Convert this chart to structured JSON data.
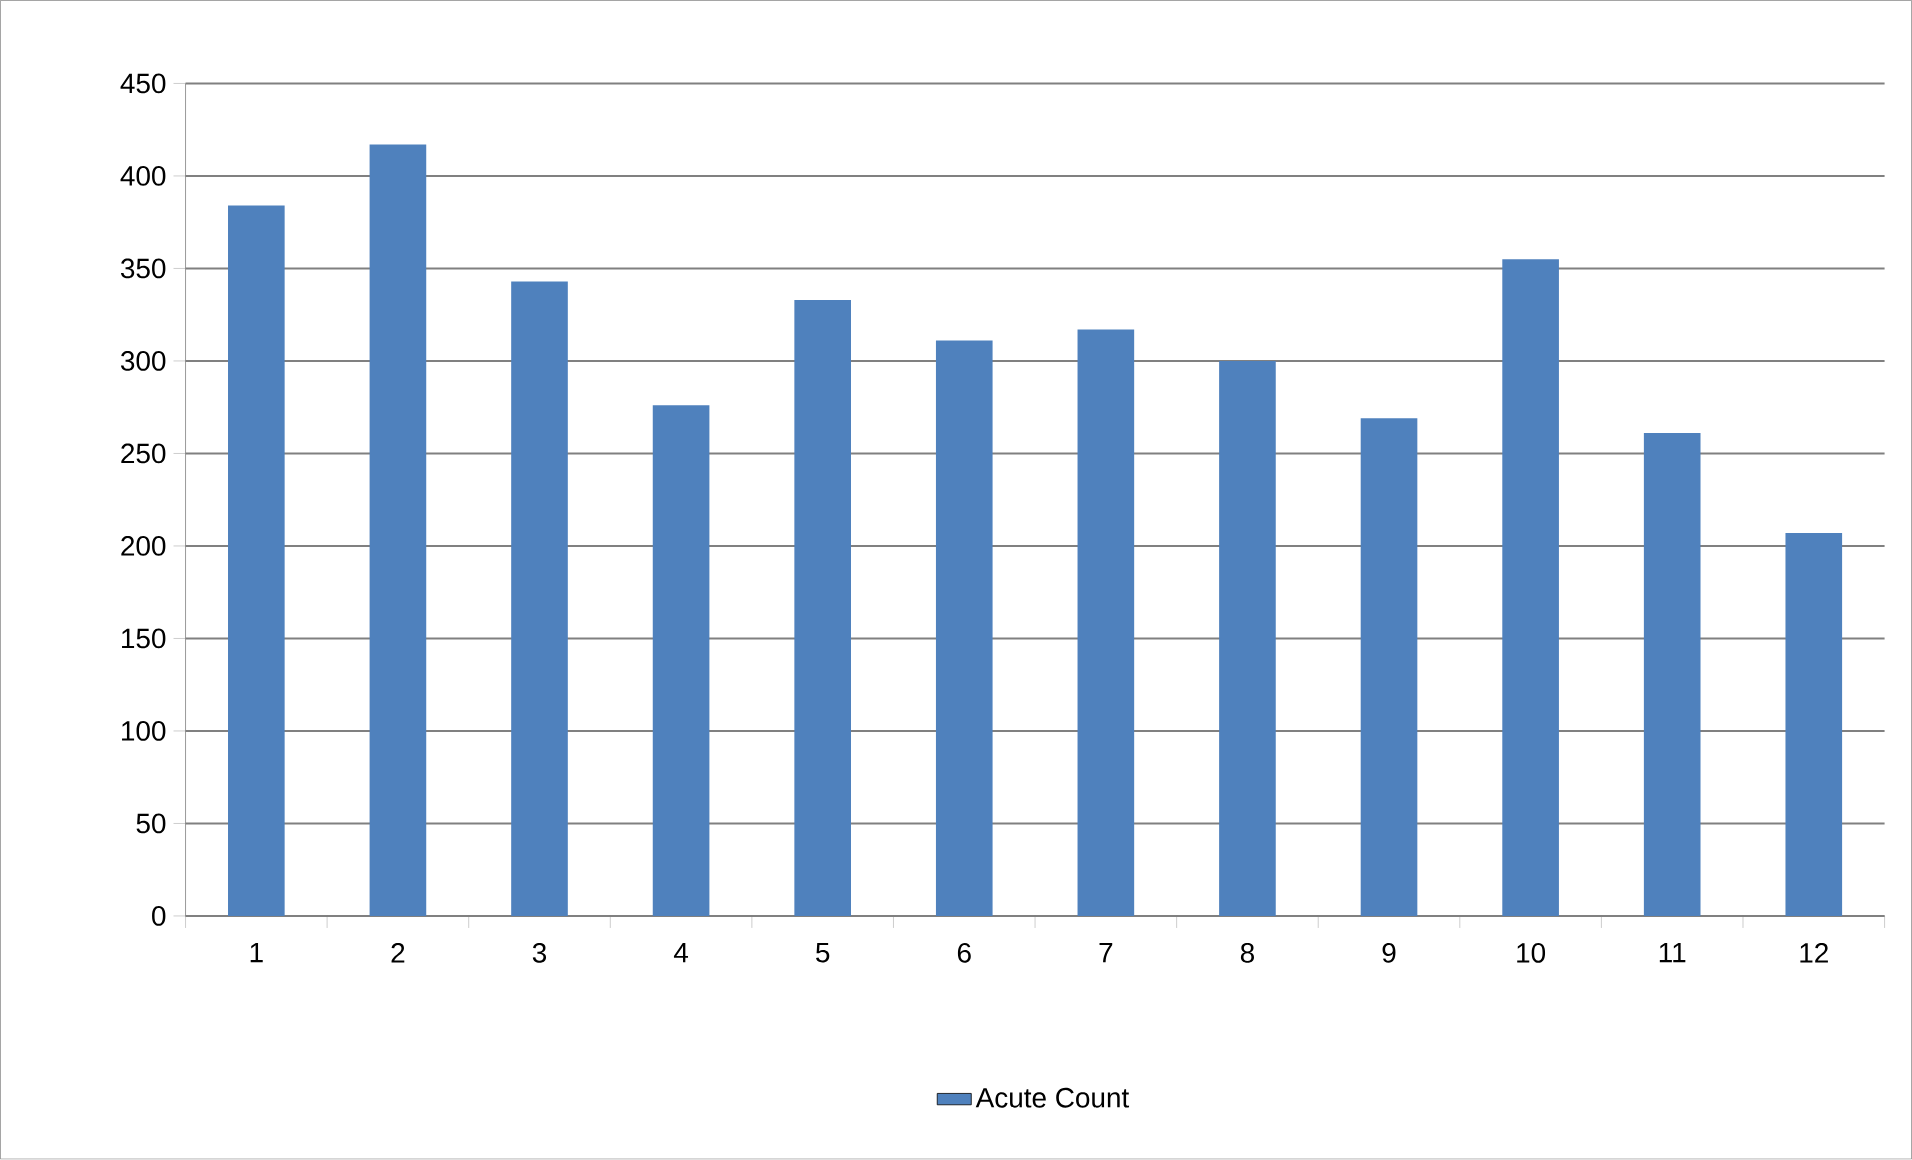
{
  "chart_data": {
    "type": "bar",
    "categories": [
      "1",
      "2",
      "3",
      "4",
      "5",
      "6",
      "7",
      "8",
      "9",
      "10",
      "11",
      "12"
    ],
    "series": [
      {
        "name": "Acute Count",
        "color": "#4f81bd",
        "values": [
          384,
          417,
          343,
          276,
          333,
          311,
          317,
          300,
          269,
          355,
          261,
          207
        ]
      }
    ],
    "ylim": [
      0,
      450
    ],
    "yticks": [
      0,
      50,
      100,
      150,
      200,
      250,
      300,
      350,
      400,
      450
    ],
    "grid": "y",
    "legend": "bottom"
  }
}
